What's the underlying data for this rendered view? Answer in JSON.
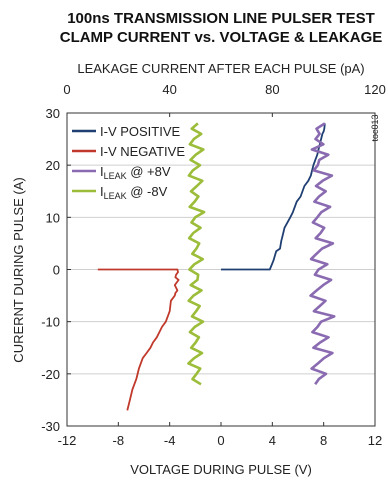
{
  "chart_data": {
    "type": "line",
    "title_lines": [
      "100ns TRANSMISSION LINE PULSER TEST",
      "CLAMP CURRENT vs. VOLTAGE & LEAKAGE"
    ],
    "xlabel": "VOLTAGE DURING PULSE (V)",
    "x2label": "LEAKAGE CURRENT AFTER EACH PULSE (pA)",
    "ylabel": "CURERNT DURING PULSE (A)",
    "annotation": "toc013",
    "xlim": [
      -12,
      12
    ],
    "x2lim": [
      0,
      120
    ],
    "ylim": [
      -30,
      30
    ],
    "x_ticks": [
      -12,
      -8,
      -4,
      0,
      4,
      8,
      12
    ],
    "x2_ticks": [
      0,
      40,
      80,
      120
    ],
    "y_ticks": [
      -30,
      -20,
      -10,
      0,
      10,
      20,
      30
    ],
    "legend": [
      {
        "text": "I-V POSITIVE"
      },
      {
        "text": "I-V NEGATIVE"
      },
      {
        "base": "I",
        "sub": "LEAK",
        "rest": " @ +8V"
      },
      {
        "base": "I",
        "sub": "LEAK",
        "rest": " @ -8V"
      }
    ],
    "colors": [
      "#1f3f73",
      "#c0392b",
      "#8a6bb1",
      "#9cbd3a"
    ],
    "series": [
      {
        "axis": "bottom",
        "x": [
          0,
          1,
          2,
          3,
          3.8,
          4.05,
          4.1,
          4.3,
          4.6,
          4.7,
          4.75,
          4.9,
          4.95,
          5.4,
          5.6,
          5.9,
          6.2,
          6.5,
          6.8,
          7.0,
          7.2,
          7.35,
          7.5,
          7.6,
          7.7,
          7.8,
          7.9,
          8.0,
          8.05,
          8.1
        ],
        "y": [
          0,
          0,
          0,
          0,
          0,
          1.5,
          1.8,
          3.5,
          4.0,
          5.5,
          6.0,
          7.5,
          8.0,
          10,
          11,
          13,
          14,
          16,
          17,
          18,
          20,
          21,
          22,
          23,
          24,
          25,
          26,
          26.5,
          27,
          28
        ]
      },
      {
        "axis": "bottom",
        "x": [
          -9.6,
          -6,
          -4,
          -3.4,
          -3.35,
          -3.5,
          -3.55,
          -3.3,
          -3.6,
          -3.4,
          -3.55,
          -3.6,
          -3.9,
          -4.0,
          -4.3,
          -4.6,
          -4.8,
          -5.0,
          -5.3,
          -5.5,
          -5.8,
          -6.1,
          -6.4,
          -6.6,
          -6.9,
          -7.1,
          -7.3
        ],
        "y": [
          0,
          0,
          0,
          0,
          -0.5,
          -1.0,
          -1.5,
          -2.0,
          -3.0,
          -4.0,
          -4.5,
          -5.0,
          -6.0,
          -8.0,
          -10,
          -11,
          -12,
          -13,
          -14,
          -15,
          -16,
          -17,
          -19,
          -21,
          -23,
          -25,
          -27
        ]
      },
      {
        "axis": "top",
        "x": [
          100.5,
          97.2,
          98.4,
          96.8,
          99.9,
          95.4,
          101.8,
          98.3,
          97.7,
          96.1,
          103.2,
          99.6,
          97.0,
          100.8,
          98.2,
          96.4,
          102.5,
          99.1,
          97.5,
          95.8,
          100.2,
          98.8,
          96.9,
          103.6,
          99.4,
          97.2,
          95.1,
          101.4,
          98.0,
          96.6,
          102.9,
          99.8,
          97.3,
          94.9,
          100.7,
          98.5,
          96.2,
          104.1,
          99.0,
          97.6,
          95.6,
          101.9,
          98.6,
          96.0,
          103.4,
          100.1,
          97.8,
          95.3,
          100.9,
          98.1,
          96.7
        ],
        "y": [
          28,
          27,
          26,
          25,
          24,
          23,
          22,
          21,
          20,
          19,
          18,
          17,
          16,
          15,
          14,
          13,
          12,
          11,
          10,
          9,
          8,
          7,
          6,
          5,
          4,
          3,
          2,
          1,
          0,
          -1,
          -2,
          -3,
          -4,
          -5,
          -6,
          -7,
          -8,
          -9,
          -10,
          -11,
          -12,
          -13,
          -14,
          -15,
          -16,
          -17,
          -18,
          -19,
          -20,
          -21,
          -22
        ]
      },
      {
        "axis": "top",
        "x": [
          51.0,
          48.6,
          52.3,
          49.4,
          47.9,
          53.1,
          50.2,
          48.1,
          51.8,
          49.0,
          47.5,
          52.7,
          50.6,
          48.3,
          51.2,
          49.7,
          47.8,
          53.4,
          50.0,
          48.5,
          52.0,
          49.2,
          47.6,
          51.5,
          50.4,
          48.8,
          52.9,
          49.6,
          47.7,
          51.1,
          50.8,
          48.2,
          52.4,
          49.3,
          47.4,
          51.7,
          50.3,
          48.7,
          53.0,
          49.8,
          47.9,
          51.4,
          50.1,
          48.4,
          52.6,
          49.5,
          47.3,
          51.9,
          50.5,
          48.9,
          52.2
        ],
        "y": [
          28,
          27,
          26,
          25,
          24,
          23,
          22,
          21,
          20,
          19,
          18,
          17,
          16,
          15,
          14,
          13,
          12,
          11,
          10,
          9,
          8,
          7,
          6,
          5,
          4,
          3,
          2,
          1,
          0,
          -1,
          -2,
          -3,
          -4,
          -5,
          -6,
          -7,
          -8,
          -9,
          -10,
          -11,
          -12,
          -13,
          -14,
          -15,
          -16,
          -17,
          -18,
          -19,
          -20,
          -21,
          -22
        ]
      }
    ]
  }
}
